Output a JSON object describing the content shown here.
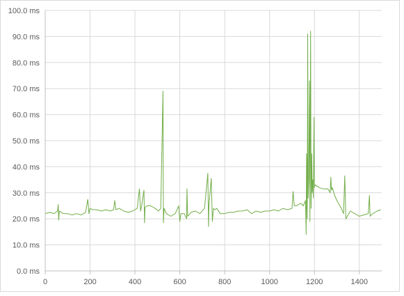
{
  "chart_data": {
    "type": "line",
    "title": "",
    "xlabel": "",
    "ylabel": "",
    "xlim": [
      0,
      1500
    ],
    "ylim": [
      0,
      100
    ],
    "x_ticks": [
      "0",
      "200",
      "400",
      "600",
      "800",
      "1000",
      "1200",
      "1400"
    ],
    "y_ticks": [
      "0.0 ms",
      "10.0 ms",
      "20.0 ms",
      "30.0 ms",
      "40.0 ms",
      "50.0 ms",
      "60.0 ms",
      "70.0 ms",
      "80.0 ms",
      "90.0 ms",
      "100.0 ms"
    ],
    "grid": true,
    "legend": "none",
    "series": [
      {
        "color": "#70ad47",
        "x": [
          0,
          20,
          40,
          55,
          58,
          60,
          63,
          80,
          100,
          120,
          140,
          160,
          180,
          190,
          195,
          200,
          210,
          230,
          250,
          270,
          290,
          305,
          310,
          315,
          330,
          350,
          370,
          390,
          410,
          420,
          425,
          430,
          440,
          443,
          445,
          455,
          470,
          490,
          505,
          515,
          525,
          527,
          530,
          540,
          560,
          580,
          595,
          600,
          605,
          620,
          630,
          632,
          635,
          650,
          670,
          690,
          710,
          725,
          728,
          730,
          740,
          745,
          750,
          755,
          765,
          780,
          800,
          820,
          840,
          860,
          880,
          900,
          920,
          940,
          960,
          980,
          1000,
          1020,
          1040,
          1060,
          1080,
          1100,
          1105,
          1110,
          1120,
          1140,
          1150,
          1160,
          1163,
          1165,
          1168,
          1170,
          1172,
          1175,
          1178,
          1180,
          1183,
          1185,
          1188,
          1190,
          1193,
          1195,
          1198,
          1200,
          1203,
          1206,
          1210,
          1215,
          1220,
          1240,
          1260,
          1270,
          1273,
          1276,
          1280,
          1290,
          1300,
          1320,
          1330,
          1335,
          1340,
          1360,
          1380,
          1400,
          1420,
          1440,
          1445,
          1448,
          1460,
          1480,
          1495
        ],
        "y": [
          22,
          22.5,
          22,
          23,
          25.5,
          19.5,
          23,
          22,
          22,
          21.5,
          22,
          21.5,
          22.5,
          27.5,
          22,
          24,
          23.5,
          23.5,
          23,
          23.5,
          23,
          23.5,
          27,
          23.5,
          24,
          23,
          22.5,
          23,
          24,
          31.5,
          23,
          25,
          31,
          18.5,
          24.5,
          25,
          25,
          24,
          23,
          24,
          69,
          18.5,
          24,
          22,
          21,
          22,
          25,
          19,
          22,
          22,
          20,
          31.5,
          21,
          22.5,
          23,
          22,
          24,
          37.5,
          17,
          25,
          35.5,
          19,
          24,
          23.5,
          24,
          22,
          22,
          22.5,
          22.5,
          23,
          23,
          23.5,
          22,
          23,
          22.5,
          23,
          23,
          23.5,
          23,
          24,
          23.5,
          24,
          30.5,
          25,
          25,
          26,
          25,
          27,
          14,
          45,
          20,
          91,
          28,
          35,
          73,
          19,
          92,
          24,
          45,
          30,
          35,
          28,
          59,
          32,
          33,
          33,
          32.5,
          32.5,
          32,
          31.5,
          31.5,
          30,
          36,
          31,
          32,
          29,
          27,
          24,
          22,
          36.5,
          20,
          23,
          22,
          21,
          21.5,
          22,
          29,
          21,
          22,
          23,
          23.5
        ]
      }
    ]
  }
}
